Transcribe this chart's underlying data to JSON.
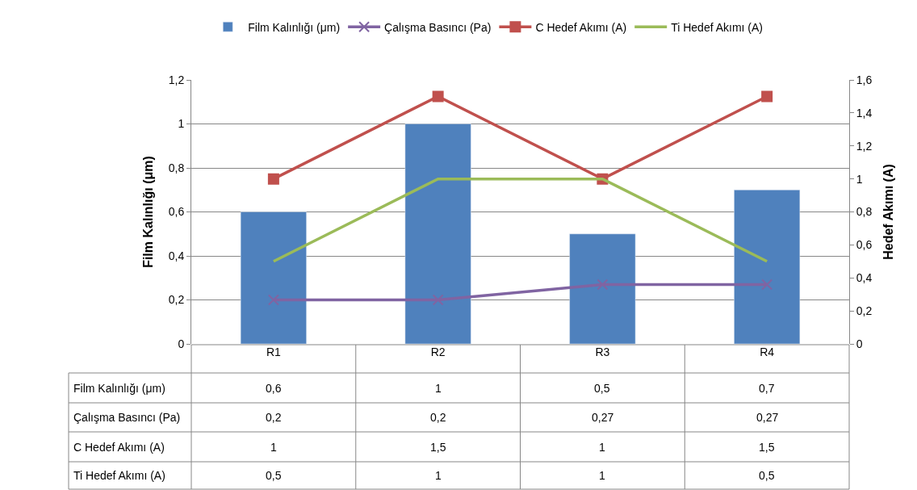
{
  "chart_data": {
    "type": "bar",
    "categories": [
      "R1",
      "R2",
      "R3",
      "R4"
    ],
    "ylabel": "Film Kalınlığı (μm)",
    "y2label": "Hedef Akımı (A)",
    "series": [
      {
        "name": "Film Kalınlığı (μm)",
        "color": "#4f81bd",
        "values": [
          0.6,
          1,
          0.5,
          0.7
        ],
        "value_labels": [
          "0,6",
          "1",
          "0,5",
          "0,7"
        ]
      },
      {
        "name": "Çalışma Basıncı (Pa)",
        "type": "line",
        "color": "#8064a2",
        "marker": "cross",
        "values": [
          0.2,
          0.2,
          0.27,
          0.27
        ],
        "value_labels": [
          "0,2",
          "0,2",
          "0,27",
          "0,27"
        ]
      },
      {
        "name": "C Hedef Akımı (A)",
        "type": "line",
        "axis": "y2",
        "color": "#c0504d",
        "marker": "square",
        "values": [
          1,
          1.5,
          1,
          1.5
        ],
        "value_labels": [
          "1",
          "1,5",
          "1",
          "1,5"
        ]
      },
      {
        "name": "Ti Hedef Akımı (A)",
        "type": "line",
        "axis": "y2",
        "color": "#9bbb59",
        "marker": "none",
        "values": [
          0.5,
          1,
          1,
          0.5
        ],
        "value_labels": [
          "0,5",
          "1",
          "1",
          "0,5"
        ]
      }
    ],
    "ylim": [
      0,
      1.2
    ],
    "yticks": [
      0,
      {
        "value": 0.2,
        "label": "0,2"
      },
      {
        "value": 0.4,
        "label": "0,4"
      },
      {
        "value": 0.6,
        "label": "0,6"
      },
      {
        "value": 0.8,
        "label": "0,8"
      },
      1,
      {
        "value": 1.2,
        "label": "1,2"
      }
    ],
    "y2lim": [
      0,
      1.6
    ],
    "y2ticks": [
      0,
      {
        "value": 0.2,
        "label": "0,2"
      },
      {
        "value": 0.4,
        "label": "0,4"
      },
      {
        "value": 0.6,
        "label": "0,6"
      },
      {
        "value": 0.8,
        "label": "0,8"
      },
      1,
      {
        "value": 1.2,
        "label": "1,2"
      },
      {
        "value": 1.4,
        "label": "1,4"
      },
      {
        "value": 1.6,
        "label": "1,6"
      }
    ],
    "grid": "y",
    "legend": "top"
  }
}
